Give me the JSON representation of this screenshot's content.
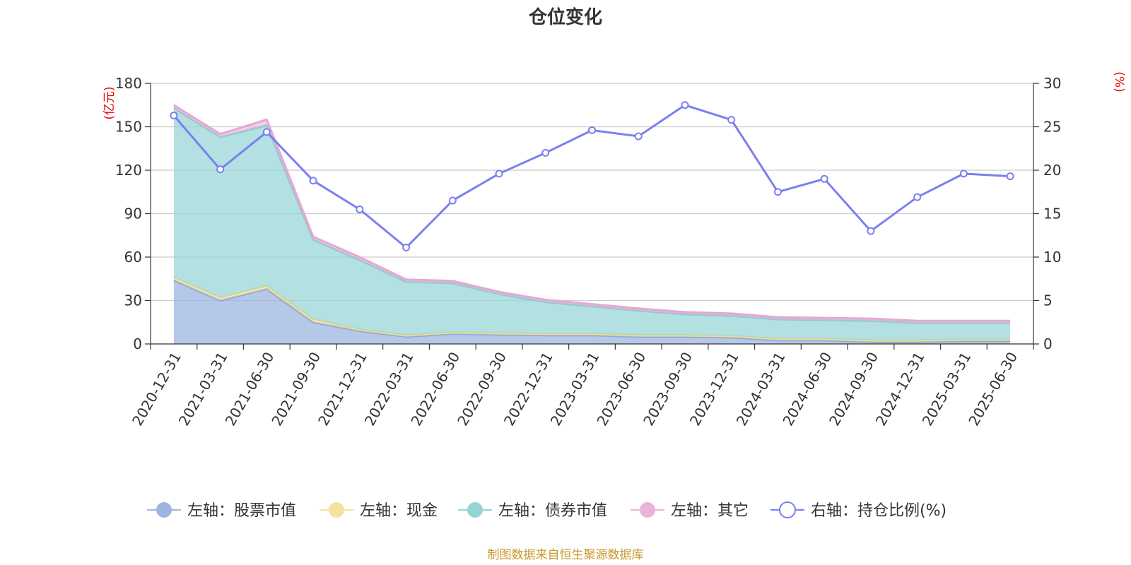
{
  "chart_data": {
    "type": "area",
    "title": "仓位变化",
    "left_axis_unit": "(亿元)",
    "right_axis_unit": "(%)",
    "left_ylim": [
      0,
      180
    ],
    "left_yticks": [
      0,
      30,
      60,
      90,
      120,
      150,
      180
    ],
    "right_ylim": [
      0,
      30
    ],
    "right_yticks": [
      0,
      5,
      10,
      15,
      20,
      25,
      30
    ],
    "grid": true,
    "legend_position": "bottom",
    "stacked": true,
    "categories": [
      "2020-12-31",
      "2021-03-31",
      "2021-06-30",
      "2021-09-30",
      "2021-12-31",
      "2022-03-31",
      "2022-06-30",
      "2022-09-30",
      "2022-12-31",
      "2023-03-31",
      "2023-06-30",
      "2023-09-30",
      "2023-12-31",
      "2024-03-31",
      "2024-06-30",
      "2024-09-30",
      "2024-12-31",
      "2025-03-31",
      "2025-06-30"
    ],
    "series": [
      {
        "name": "左轴：股票市值",
        "axis": "left",
        "type": "area",
        "color": "#9db5e0",
        "values": [
          44,
          30,
          38,
          15,
          9,
          5,
          7,
          6.5,
          6,
          6,
          5,
          5,
          4.5,
          2.5,
          2.5,
          1.5,
          1.5,
          2,
          2
        ]
      },
      {
        "name": "左轴：现金",
        "axis": "left",
        "type": "area",
        "color": "#f5e29e",
        "values": [
          2,
          2,
          2,
          2,
          1,
          1,
          1,
          1,
          1,
          1,
          1,
          1,
          1,
          1,
          1,
          1,
          1,
          1,
          1
        ]
      },
      {
        "name": "左轴：债券市值",
        "axis": "left",
        "type": "area",
        "color": "#96d4d4",
        "values": [
          117,
          111,
          111,
          55,
          48,
          37,
          34,
          27,
          22,
          19,
          17,
          14.5,
          14,
          13.5,
          13,
          13.5,
          12,
          11.5,
          11.5
        ]
      },
      {
        "name": "左轴：其它",
        "axis": "left",
        "type": "area",
        "color": "#eab3da",
        "values": [
          2,
          2,
          4,
          2,
          2,
          1.5,
          1.5,
          1.5,
          1.5,
          1.5,
          1.5,
          1.5,
          1.5,
          1.5,
          1.5,
          1.5,
          1.5,
          1.5,
          1.5
        ]
      },
      {
        "name": "右轴：持仓比例(%)",
        "axis": "right",
        "type": "line",
        "color": "#7b80f0",
        "values": [
          26.3,
          20.1,
          24.4,
          18.8,
          15.5,
          11.1,
          16.5,
          19.6,
          22.0,
          24.6,
          23.9,
          27.5,
          25.8,
          17.5,
          19.0,
          13.0,
          16.9,
          19.6,
          19.3
        ]
      }
    ]
  },
  "source_note": "制图数据来自恒生聚源数据库"
}
